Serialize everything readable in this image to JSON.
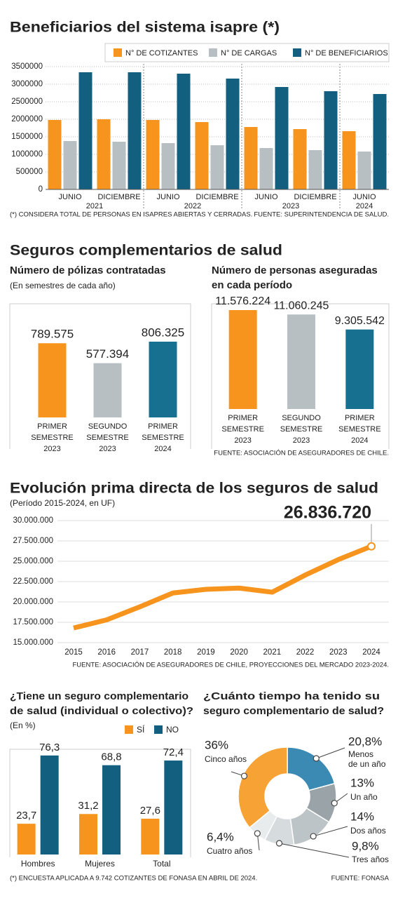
{
  "section_title": "Seguros complementarios de salud",
  "chart_data": [
    {
      "type": "grouped-bar",
      "title": "Beneficiarios del sistema isapre (*)",
      "groups": [
        {
          "label": "2021",
          "categories": [
            "JUNIO",
            "DICIEMBRE"
          ]
        },
        {
          "label": "2022",
          "categories": [
            "JUNIO",
            "DICIEMBRE"
          ]
        },
        {
          "label": "2023",
          "categories": [
            "JUNIO",
            "DICIEMBRE"
          ]
        },
        {
          "label": "2024",
          "categories": [
            "JUNIO"
          ]
        }
      ],
      "series": [
        {
          "name": "N° DE COTIZANTES",
          "color": "#f7941d",
          "values": [
            1980000,
            2000000,
            1980000,
            1920000,
            1780000,
            1720000,
            1660000
          ]
        },
        {
          "name": "N° DE CARGAS",
          "color": "#b7bfc2",
          "values": [
            1380000,
            1360000,
            1320000,
            1260000,
            1180000,
            1120000,
            1080000
          ]
        },
        {
          "name": "N° DE BENEFICIARIOS",
          "color": "#135f7f",
          "values": [
            3340000,
            3340000,
            3300000,
            3160000,
            2920000,
            2800000,
            2720000
          ]
        }
      ],
      "ylim": [
        0,
        3500000
      ],
      "yticks": [
        0,
        500000,
        1000000,
        1500000,
        2000000,
        2500000,
        3000000,
        3500000
      ],
      "grid": true,
      "legend": "top-right",
      "footnote": "(*) CONSIDERA TOTAL DE PERSONAS EN ISAPRES ABIERTAS Y CERRADAS.",
      "source": "FUENTE: SUPERINTENDENCIA DE SALUD."
    },
    {
      "type": "bar",
      "title": [
        "Número de pólizas contratadas"
      ],
      "subtitle": "(En semestres de cada año)",
      "categories": [
        "PRIMER SEMESTRE 2023",
        "SEGUNDO SEMESTRE 2023",
        "PRIMER SEMESTRE 2024"
      ],
      "values": [
        789575,
        577394,
        806325
      ],
      "value_labels": [
        "789.575",
        "577.394",
        "806.325"
      ],
      "colors": [
        "#f7941d",
        "#b7bfc2",
        "#17708f"
      ]
    },
    {
      "type": "bar",
      "title": [
        "Número de personas aseguradas",
        "en cada período"
      ],
      "categories": [
        "PRIMER SEMESTRE 2023",
        "SEGUNDO SEMESTRE 2023",
        "PRIMER SEMESTRE 2024"
      ],
      "values": [
        11576224,
        11060245,
        9305542
      ],
      "value_labels": [
        "11.576.224",
        "11.060.245",
        "9.305.542"
      ],
      "colors": [
        "#f7941d",
        "#b7bfc2",
        "#17708f"
      ],
      "source": "FUENTE: ASOCIACIÓN DE ASEGURADORES DE CHILE."
    },
    {
      "type": "line",
      "title": [
        "Evolución prima directa de los seguros de salud"
      ],
      "subtitle": "(Período 2015-2024, en UF)",
      "x": [
        2015,
        2016,
        2017,
        2018,
        2019,
        2020,
        2021,
        2022,
        2023,
        2024
      ],
      "values": [
        16800000,
        17800000,
        19400000,
        21100000,
        21550000,
        21700000,
        21200000,
        23300000,
        25200000,
        26836720
      ],
      "value_labels": [
        null,
        null,
        null,
        null,
        null,
        null,
        null,
        null,
        null,
        "26.836.720"
      ],
      "color": "#f7941d",
      "xlim": [
        2015,
        2024
      ],
      "xticks": [
        2015,
        2016,
        2017,
        2018,
        2019,
        2020,
        2021,
        2022,
        2023,
        2024
      ],
      "ylim": [
        15000000,
        30000000
      ],
      "yticks": [
        {
          "value": 15000000,
          "label": "15.000.000"
        },
        {
          "value": 17500000,
          "label": "17.500.000"
        },
        {
          "value": 20000000,
          "label": "20.000.000"
        },
        {
          "value": 22500000,
          "label": "22.500.000"
        },
        {
          "value": 25000000,
          "label": "25.000.000"
        },
        {
          "value": 27500000,
          "label": "27.500.000"
        },
        {
          "value": 30000000,
          "label": "30.000.000"
        }
      ],
      "grid": true,
      "source": "FUENTE: ASOCIACIÓN DE ASEGURADORES DE CHILE, PROYECCIONES DEL MERCADO 2023-2024."
    },
    {
      "type": "grouped-bar-plain",
      "title": [
        "¿Tiene un seguro complementario",
        "de salud (individual o colectivo)?"
      ],
      "subtitle": "(En %)",
      "categories": [
        "Hombres",
        "Mujeres",
        "Total"
      ],
      "series": [
        {
          "name": "SÍ",
          "color": "#f7941d",
          "values": [
            23.7,
            31.2,
            27.6
          ],
          "value_labels": [
            "23,7",
            "31,2",
            "27,6"
          ]
        },
        {
          "name": "NO",
          "color": "#135f7f",
          "values": [
            76.3,
            68.8,
            72.4
          ],
          "value_labels": [
            "76,3",
            "68,8",
            "72,4"
          ]
        }
      ],
      "legend": "top-right",
      "footnote": "(*) ENCUESTA APLICADA A  9.742 COTIZANTES DE FONASA EN ABRIL DE 2024."
    },
    {
      "type": "donut",
      "title": [
        "¿Cuánto tiempo ha tenido su",
        "seguro complementario de salud?"
      ],
      "categories": [
        "Menos de un año",
        "Un año",
        "Dos años",
        "Tres años",
        "Cuatro años",
        "Cinco años"
      ],
      "values": [
        20.8,
        13,
        14,
        9.8,
        6.4,
        36
      ],
      "value_labels": [
        "20,8%",
        "13%",
        "14%",
        "9,8%",
        "6,4%",
        "36%"
      ],
      "colors": [
        "#3a8ab4",
        "#9aa4a8",
        "#bcc4c7",
        "#d6dbdd",
        "#e9eced",
        "#f7a234"
      ],
      "source": "FUENTE: FONASA"
    }
  ]
}
